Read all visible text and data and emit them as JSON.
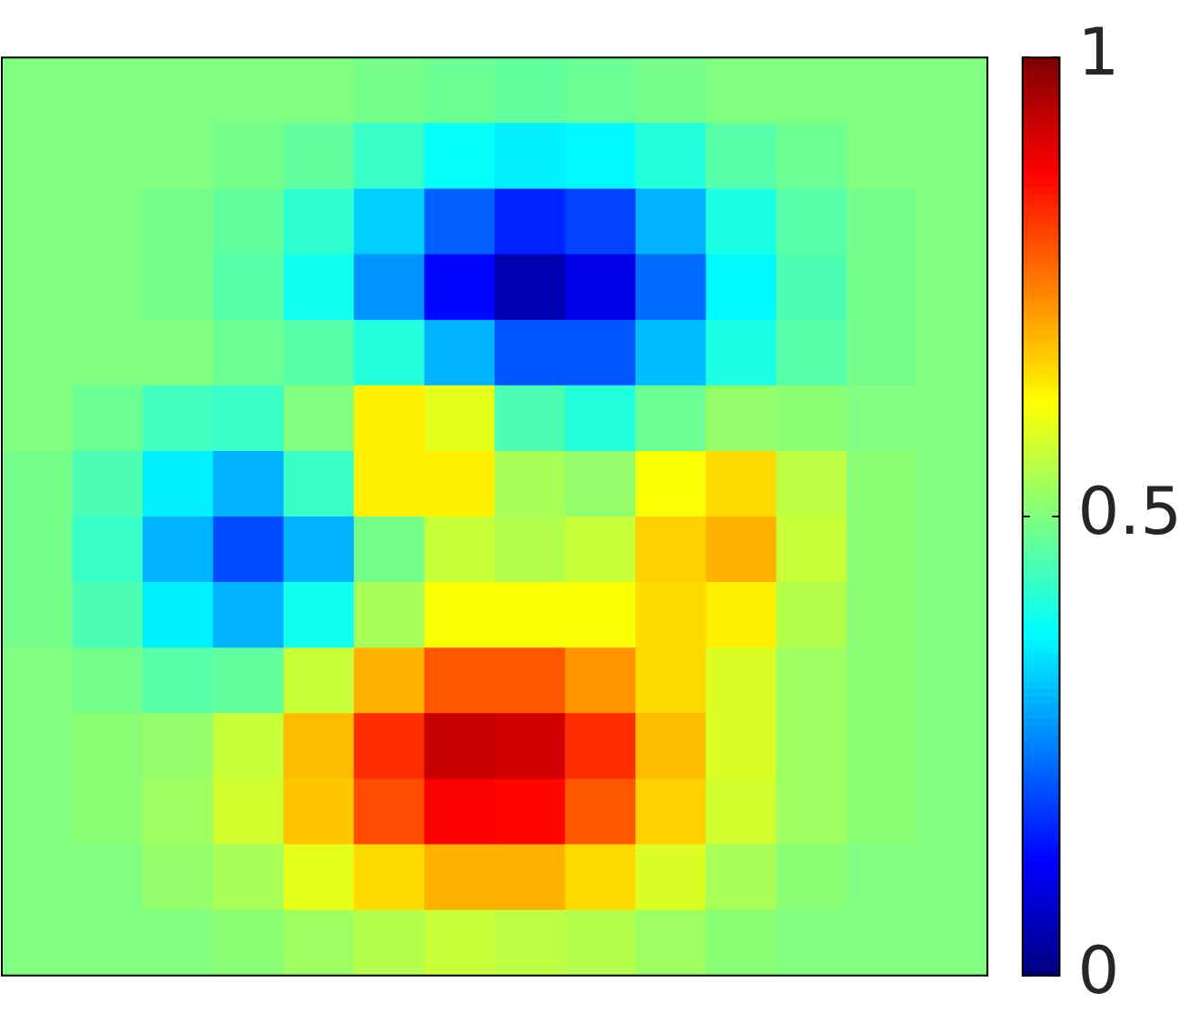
{
  "chart_data": {
    "type": "heatmap",
    "categories": [
      null,
      null,
      null,
      null,
      null,
      null,
      null,
      null,
      null,
      null,
      null,
      null,
      null,
      null
    ],
    "y_categories": [
      null,
      null,
      null,
      null,
      null,
      null,
      null,
      null,
      null,
      null,
      null,
      null,
      null,
      null
    ],
    "cells": [
      [
        0.5,
        0.5,
        0.5,
        0.5,
        0.5,
        0.49,
        0.48,
        0.47,
        0.48,
        0.49,
        0.5,
        0.5,
        0.5,
        0.5
      ],
      [
        0.5,
        0.5,
        0.5,
        0.49,
        0.47,
        0.43,
        0.38,
        0.36,
        0.37,
        0.41,
        0.46,
        0.48,
        0.5,
        0.5
      ],
      [
        0.5,
        0.5,
        0.49,
        0.47,
        0.42,
        0.33,
        0.22,
        0.16,
        0.19,
        0.3,
        0.4,
        0.46,
        0.49,
        0.5
      ],
      [
        0.5,
        0.5,
        0.49,
        0.46,
        0.39,
        0.27,
        0.13,
        0.05,
        0.1,
        0.23,
        0.37,
        0.45,
        0.49,
        0.5
      ],
      [
        0.5,
        0.5,
        0.5,
        0.48,
        0.46,
        0.41,
        0.3,
        0.21,
        0.21,
        0.31,
        0.4,
        0.46,
        0.49,
        0.5
      ],
      [
        0.5,
        0.48,
        0.44,
        0.43,
        0.5,
        0.64,
        0.6,
        0.45,
        0.41,
        0.48,
        0.52,
        0.51,
        0.5,
        0.5
      ],
      [
        0.49,
        0.45,
        0.36,
        0.3,
        0.43,
        0.64,
        0.64,
        0.54,
        0.52,
        0.62,
        0.66,
        0.56,
        0.51,
        0.5
      ],
      [
        0.49,
        0.43,
        0.3,
        0.2,
        0.3,
        0.49,
        0.57,
        0.55,
        0.57,
        0.67,
        0.7,
        0.57,
        0.51,
        0.5
      ],
      [
        0.49,
        0.45,
        0.36,
        0.3,
        0.39,
        0.54,
        0.62,
        0.62,
        0.62,
        0.66,
        0.64,
        0.55,
        0.51,
        0.5
      ],
      [
        0.5,
        0.49,
        0.46,
        0.47,
        0.57,
        0.7,
        0.79,
        0.79,
        0.73,
        0.66,
        0.59,
        0.53,
        0.51,
        0.5
      ],
      [
        0.5,
        0.51,
        0.52,
        0.57,
        0.69,
        0.83,
        0.93,
        0.92,
        0.83,
        0.69,
        0.59,
        0.53,
        0.51,
        0.5
      ],
      [
        0.5,
        0.51,
        0.53,
        0.58,
        0.68,
        0.8,
        0.88,
        0.87,
        0.79,
        0.67,
        0.58,
        0.53,
        0.51,
        0.5
      ],
      [
        0.5,
        0.5,
        0.52,
        0.54,
        0.6,
        0.66,
        0.7,
        0.7,
        0.66,
        0.59,
        0.54,
        0.51,
        0.5,
        0.5
      ],
      [
        0.5,
        0.5,
        0.5,
        0.51,
        0.53,
        0.55,
        0.57,
        0.56,
        0.55,
        0.53,
        0.51,
        0.5,
        0.5,
        0.5
      ]
    ],
    "clim": [
      0,
      1
    ],
    "cticks": [
      0,
      0.5,
      1
    ]
  }
}
